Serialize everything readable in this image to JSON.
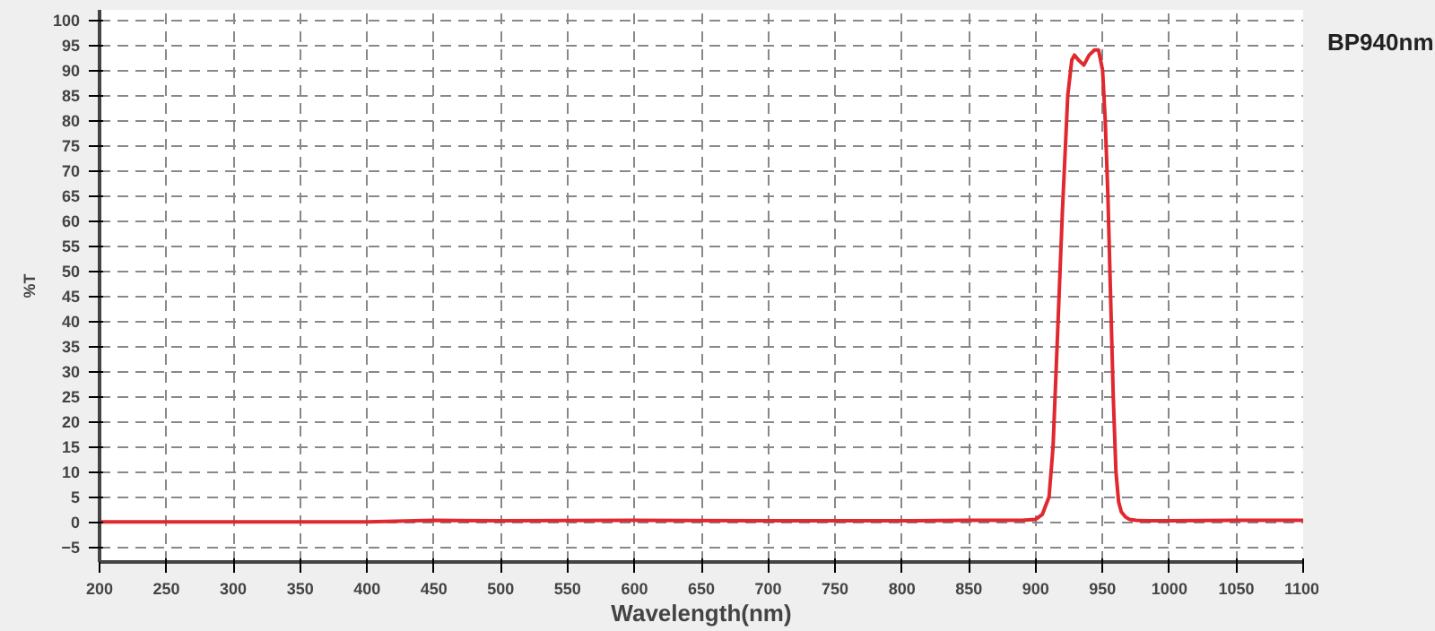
{
  "chart_data": {
    "type": "line",
    "title": "BP940nm",
    "xlabel": "Wavelength(nm)",
    "ylabel": "%T",
    "x": [
      200,
      300,
      400,
      450,
      500,
      600,
      700,
      800,
      850,
      890,
      900,
      905,
      910,
      913,
      916,
      920,
      924,
      927,
      929,
      932,
      936,
      940,
      944,
      947,
      950,
      952,
      954,
      956,
      958,
      960,
      962,
      964,
      967,
      970,
      975,
      985,
      1000,
      1050,
      1100
    ],
    "series": [
      {
        "color": "#e0282e",
        "values": [
          0,
          0,
          0,
          0.3,
          0.2,
          0.3,
          0.2,
          0.2,
          0.3,
          0.3,
          0.5,
          1.5,
          5,
          15,
          35,
          62,
          85,
          92,
          93,
          92,
          91,
          93,
          94,
          94,
          90,
          80,
          65,
          45,
          25,
          10,
          4,
          2,
          1,
          0.5,
          0.3,
          0.2,
          0.2,
          0.3,
          0.3
        ]
      }
    ],
    "xlim": [
      200,
      1100
    ],
    "ylim": [
      -8,
      102
    ],
    "xticks": [
      200,
      250,
      300,
      350,
      400,
      450,
      500,
      550,
      600,
      650,
      700,
      750,
      800,
      850,
      900,
      950,
      1000,
      1050,
      1100
    ],
    "yticks": [
      -5,
      0,
      5,
      10,
      15,
      20,
      25,
      30,
      35,
      40,
      45,
      50,
      55,
      60,
      65,
      70,
      75,
      80,
      85,
      90,
      95,
      100
    ],
    "grid": true,
    "line_style": "solid",
    "marker": "none"
  }
}
